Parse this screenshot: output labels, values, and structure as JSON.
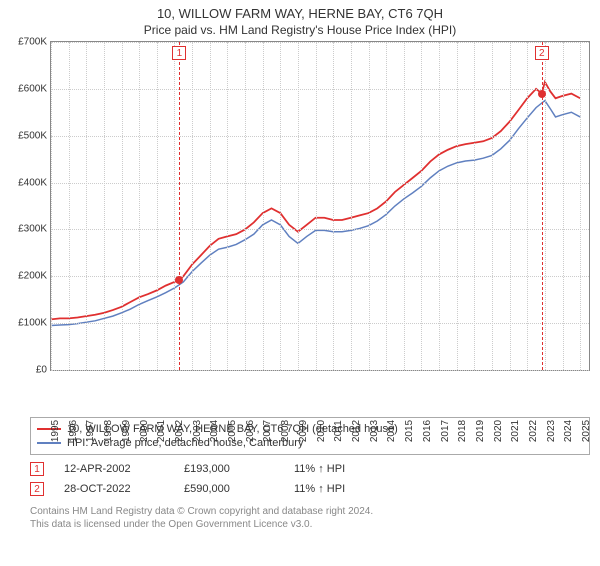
{
  "title_line1": "10, WILLOW FARM WAY, HERNE BAY, CT6 7QH",
  "title_line2": "Price paid vs. HM Land Registry's House Price Index (HPI)",
  "chart": {
    "type": "line",
    "ylim": [
      0,
      700000
    ],
    "ytick_step": 100000,
    "ytick_labels": [
      "£0",
      "£100K",
      "£200K",
      "£300K",
      "£400K",
      "£500K",
      "£600K",
      "£700K"
    ],
    "xlim": [
      1995,
      2025.5
    ],
    "xtick_labels": [
      "1995",
      "1996",
      "1997",
      "1998",
      "1999",
      "2000",
      "2001",
      "2002",
      "2003",
      "2004",
      "2005",
      "2006",
      "2007",
      "2008",
      "2009",
      "2010",
      "2011",
      "2012",
      "2013",
      "2014",
      "2015",
      "2016",
      "2017",
      "2018",
      "2019",
      "2020",
      "2021",
      "2022",
      "2023",
      "2024",
      "2025"
    ],
    "background_color": "#ffffff",
    "grid_color": "#cccccc",
    "border_color": "#888888",
    "series": [
      {
        "name": "property",
        "color": "#e03030",
        "width": 1.8,
        "points": [
          [
            1995,
            108000
          ],
          [
            1995.5,
            110000
          ],
          [
            1996,
            110000
          ],
          [
            1996.5,
            112000
          ],
          [
            1997,
            115000
          ],
          [
            1997.5,
            118000
          ],
          [
            1998,
            122000
          ],
          [
            1998.5,
            128000
          ],
          [
            1999,
            135000
          ],
          [
            1999.5,
            145000
          ],
          [
            2000,
            155000
          ],
          [
            2000.5,
            162000
          ],
          [
            2001,
            170000
          ],
          [
            2001.5,
            180000
          ],
          [
            2002,
            188000
          ],
          [
            2002.28,
            193000
          ],
          [
            2002.5,
            200000
          ],
          [
            2003,
            225000
          ],
          [
            2003.5,
            245000
          ],
          [
            2004,
            265000
          ],
          [
            2004.5,
            280000
          ],
          [
            2005,
            285000
          ],
          [
            2005.5,
            290000
          ],
          [
            2006,
            300000
          ],
          [
            2006.5,
            315000
          ],
          [
            2007,
            335000
          ],
          [
            2007.5,
            345000
          ],
          [
            2008,
            335000
          ],
          [
            2008.5,
            310000
          ],
          [
            2009,
            295000
          ],
          [
            2009.5,
            310000
          ],
          [
            2010,
            325000
          ],
          [
            2010.5,
            325000
          ],
          [
            2011,
            320000
          ],
          [
            2011.5,
            320000
          ],
          [
            2012,
            325000
          ],
          [
            2012.5,
            330000
          ],
          [
            2013,
            335000
          ],
          [
            2013.5,
            345000
          ],
          [
            2014,
            360000
          ],
          [
            2014.5,
            380000
          ],
          [
            2015,
            395000
          ],
          [
            2015.5,
            410000
          ],
          [
            2016,
            425000
          ],
          [
            2016.5,
            445000
          ],
          [
            2017,
            460000
          ],
          [
            2017.5,
            470000
          ],
          [
            2018,
            478000
          ],
          [
            2018.5,
            482000
          ],
          [
            2019,
            485000
          ],
          [
            2019.5,
            488000
          ],
          [
            2020,
            495000
          ],
          [
            2020.5,
            510000
          ],
          [
            2021,
            530000
          ],
          [
            2021.5,
            555000
          ],
          [
            2022,
            580000
          ],
          [
            2022.5,
            600000
          ],
          [
            2022.82,
            590000
          ],
          [
            2023,
            615000
          ],
          [
            2023.3,
            595000
          ],
          [
            2023.6,
            580000
          ],
          [
            2024,
            585000
          ],
          [
            2024.5,
            590000
          ],
          [
            2025,
            580000
          ]
        ]
      },
      {
        "name": "hpi",
        "color": "#6080c0",
        "width": 1.5,
        "points": [
          [
            1995,
            95000
          ],
          [
            1995.5,
            96000
          ],
          [
            1996,
            97000
          ],
          [
            1996.5,
            99000
          ],
          [
            1997,
            102000
          ],
          [
            1997.5,
            105000
          ],
          [
            1998,
            110000
          ],
          [
            1998.5,
            115000
          ],
          [
            1999,
            122000
          ],
          [
            1999.5,
            130000
          ],
          [
            2000,
            140000
          ],
          [
            2000.5,
            148000
          ],
          [
            2001,
            156000
          ],
          [
            2001.5,
            165000
          ],
          [
            2002,
            175000
          ],
          [
            2002.5,
            188000
          ],
          [
            2003,
            210000
          ],
          [
            2003.5,
            228000
          ],
          [
            2004,
            245000
          ],
          [
            2004.5,
            258000
          ],
          [
            2005,
            262000
          ],
          [
            2005.5,
            268000
          ],
          [
            2006,
            278000
          ],
          [
            2006.5,
            290000
          ],
          [
            2007,
            310000
          ],
          [
            2007.5,
            320000
          ],
          [
            2008,
            310000
          ],
          [
            2008.5,
            285000
          ],
          [
            2009,
            270000
          ],
          [
            2009.5,
            285000
          ],
          [
            2010,
            298000
          ],
          [
            2010.5,
            298000
          ],
          [
            2011,
            295000
          ],
          [
            2011.5,
            295000
          ],
          [
            2012,
            298000
          ],
          [
            2012.5,
            302000
          ],
          [
            2013,
            308000
          ],
          [
            2013.5,
            318000
          ],
          [
            2014,
            332000
          ],
          [
            2014.5,
            350000
          ],
          [
            2015,
            365000
          ],
          [
            2015.5,
            378000
          ],
          [
            2016,
            392000
          ],
          [
            2016.5,
            410000
          ],
          [
            2017,
            425000
          ],
          [
            2017.5,
            435000
          ],
          [
            2018,
            442000
          ],
          [
            2018.5,
            446000
          ],
          [
            2019,
            448000
          ],
          [
            2019.5,
            452000
          ],
          [
            2020,
            458000
          ],
          [
            2020.5,
            472000
          ],
          [
            2021,
            490000
          ],
          [
            2021.5,
            515000
          ],
          [
            2022,
            538000
          ],
          [
            2022.5,
            560000
          ],
          [
            2023,
            575000
          ],
          [
            2023.3,
            558000
          ],
          [
            2023.6,
            540000
          ],
          [
            2024,
            545000
          ],
          [
            2024.5,
            550000
          ],
          [
            2025,
            540000
          ]
        ]
      }
    ],
    "markers": [
      {
        "n": "1",
        "x": 2002.28,
        "y": 193000,
        "color": "#e03030"
      },
      {
        "n": "2",
        "x": 2022.82,
        "y": 590000,
        "color": "#e03030"
      }
    ]
  },
  "legend": [
    {
      "color": "#e03030",
      "label": "10, WILLOW FARM WAY, HERNE BAY, CT6 7QH (detached house)"
    },
    {
      "color": "#6080c0",
      "label": "HPI: Average price, detached house, Canterbury"
    }
  ],
  "transactions": [
    {
      "n": "1",
      "color": "#e03030",
      "date": "12-APR-2002",
      "price": "£193,000",
      "hpi": "11% ↑ HPI"
    },
    {
      "n": "2",
      "color": "#e03030",
      "date": "28-OCT-2022",
      "price": "£590,000",
      "hpi": "11% ↑ HPI"
    }
  ],
  "footer_line1": "Contains HM Land Registry data © Crown copyright and database right 2024.",
  "footer_line2": "This data is licensed under the Open Government Licence v3.0."
}
